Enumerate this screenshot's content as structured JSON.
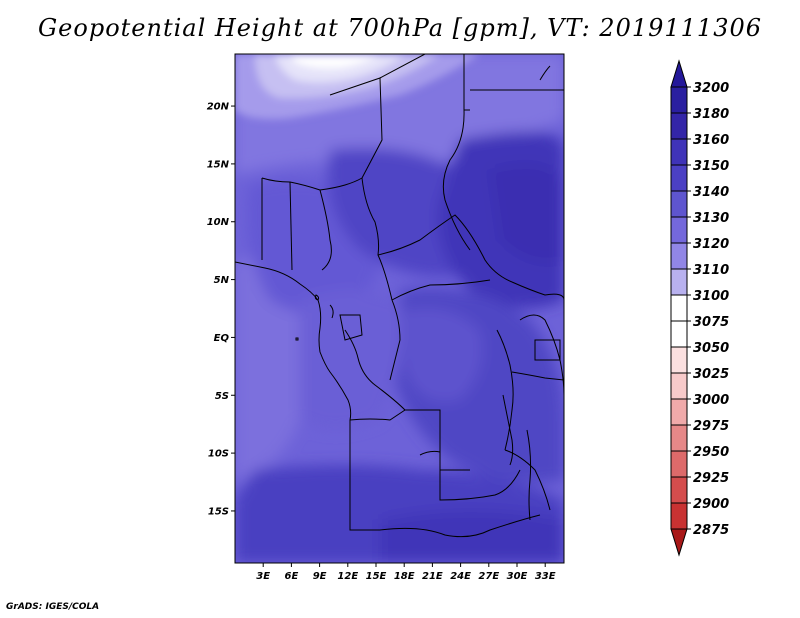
{
  "title": "Geopotential Height at 700hPa [gpm], VT: 2019111306",
  "footer": "GrADS: IGES/COLA",
  "map": {
    "lat_range": [
      -19.5,
      24.5
    ],
    "lon_range": [
      0,
      35
    ],
    "lat_ticks": [
      {
        "value": 20,
        "label": "20N"
      },
      {
        "value": 15,
        "label": "15N"
      },
      {
        "value": 10,
        "label": "10N"
      },
      {
        "value": 5,
        "label": "5N"
      },
      {
        "value": 0,
        "label": "EQ"
      },
      {
        "value": -5,
        "label": "5S"
      },
      {
        "value": -10,
        "label": "10S"
      },
      {
        "value": -15,
        "label": "15S"
      }
    ],
    "lon_ticks": [
      {
        "value": 3,
        "label": "3E"
      },
      {
        "value": 6,
        "label": "6E"
      },
      {
        "value": 9,
        "label": "9E"
      },
      {
        "value": 12,
        "label": "12E"
      },
      {
        "value": 15,
        "label": "15E"
      },
      {
        "value": 18,
        "label": "18E"
      },
      {
        "value": 21,
        "label": "21E"
      },
      {
        "value": 24,
        "label": "24E"
      },
      {
        "value": 27,
        "label": "27E"
      },
      {
        "value": 30,
        "label": "30E"
      },
      {
        "value": 33,
        "label": "33E"
      }
    ]
  },
  "colorbar": {
    "levels": [
      {
        "label": "3200",
        "color": "#2a1fa0"
      },
      {
        "label": "3180",
        "color": "#3325a8"
      },
      {
        "label": "3160",
        "color": "#3f33b8"
      },
      {
        "label": "3150",
        "color": "#4b40c4"
      },
      {
        "label": "3140",
        "color": "#5e55cf"
      },
      {
        "label": "3130",
        "color": "#7468db"
      },
      {
        "label": "3120",
        "color": "#9186e6"
      },
      {
        "label": "3110",
        "color": "#b8b1ef"
      },
      {
        "label": "3100",
        "color": "#dcdaf7"
      },
      {
        "label": "3075",
        "color": "#ffffff"
      },
      {
        "label": "3050",
        "color": "#fbe0e0"
      },
      {
        "label": "3025",
        "color": "#f7caca"
      },
      {
        "label": "3000",
        "color": "#f0aaaa"
      },
      {
        "label": "2975",
        "color": "#e68888"
      },
      {
        "label": "2950",
        "color": "#dd6a6a"
      },
      {
        "label": "2925",
        "color": "#d44d4d"
      },
      {
        "label": "2900",
        "color": "#c83232"
      },
      {
        "label": "2875",
        "color": "#b51f1f"
      }
    ],
    "top_cap_color": "#24189a",
    "bottom_cap_color": "#a81818"
  }
}
